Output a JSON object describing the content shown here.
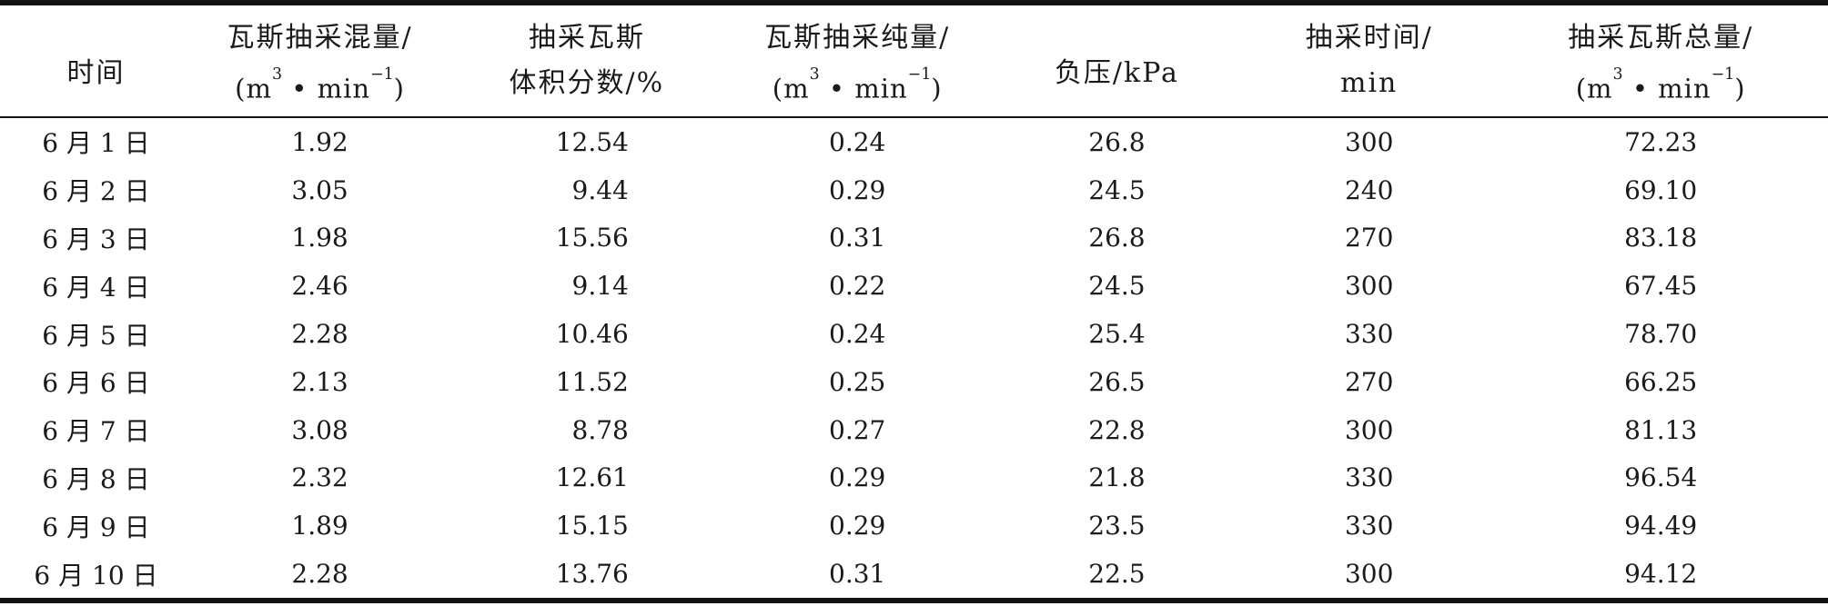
{
  "page": {
    "background": "#ffffff",
    "text_color": "#1a1a1a",
    "rule_color": "#121212"
  },
  "table": {
    "columns": [
      {
        "key": "date",
        "label_lines": [
          "时间"
        ]
      },
      {
        "key": "mixed_flow",
        "label_lines": [
          "瓦斯抽采混量/"
        ],
        "unit": {
          "pre": "(m",
          "sup1": "3",
          "mid": " • min",
          "sup2": "−1",
          "post": ")"
        }
      },
      {
        "key": "volume_fraction",
        "label_lines": [
          "抽采瓦斯",
          "体积分数/%"
        ]
      },
      {
        "key": "pure_flow",
        "label_lines": [
          "瓦斯抽采纯量/"
        ],
        "unit": {
          "pre": "(m",
          "sup1": "3",
          "mid": " • min",
          "sup2": "−1",
          "post": ")"
        }
      },
      {
        "key": "negative_pressure",
        "label_lines": [
          "负压/kPa"
        ]
      },
      {
        "key": "extraction_time",
        "label_lines": [
          "抽采时间/",
          "min"
        ]
      },
      {
        "key": "total_gas",
        "label_lines": [
          "抽采瓦斯总量/"
        ],
        "unit": {
          "pre": "(m",
          "sup1": "3",
          "mid": " • min",
          "sup2": "−1",
          "post": ")"
        }
      }
    ],
    "rows": [
      [
        "6 月 1 日",
        "1.92",
        "12.54",
        "0.24",
        "26.8",
        "300",
        "72.23"
      ],
      [
        "6 月 2 日",
        "3.05",
        "9.44",
        "0.29",
        "24.5",
        "240",
        "69.10"
      ],
      [
        "6 月 3 日",
        "1.98",
        "15.56",
        "0.31",
        "26.8",
        "270",
        "83.18"
      ],
      [
        "6 月 4 日",
        "2.46",
        "9.14",
        "0.22",
        "24.5",
        "300",
        "67.45"
      ],
      [
        "6 月 5 日",
        "2.28",
        "10.46",
        "0.24",
        "25.4",
        "330",
        "78.70"
      ],
      [
        "6 月 6 日",
        "2.13",
        "11.52",
        "0.25",
        "26.5",
        "270",
        "66.25"
      ],
      [
        "6 月 7 日",
        "3.08",
        "8.78",
        "0.27",
        "22.8",
        "300",
        "81.13"
      ],
      [
        "6 月 8 日",
        "2.32",
        "12.61",
        "0.29",
        "21.8",
        "330",
        "96.54"
      ],
      [
        "6 月 9 日",
        "1.89",
        "15.15",
        "0.29",
        "23.5",
        "330",
        "94.49"
      ],
      [
        "6 月 10 日",
        "2.28",
        "13.76",
        "0.31",
        "22.5",
        "300",
        "94.12"
      ]
    ]
  }
}
